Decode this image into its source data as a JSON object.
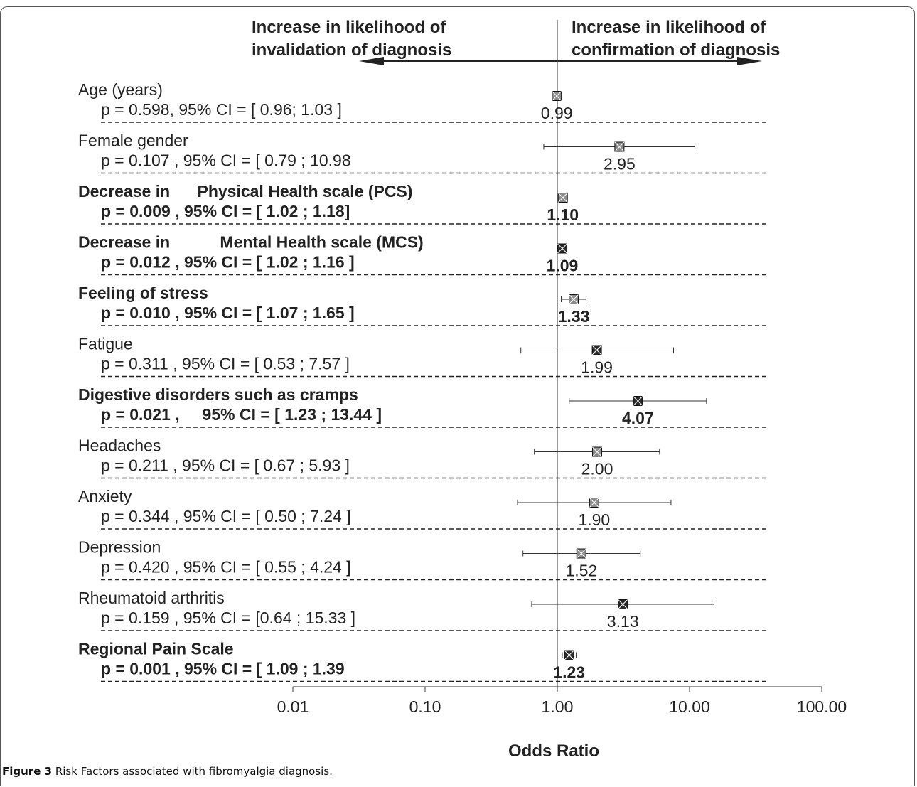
{
  "figure": {
    "caption_label": "Figure 3",
    "caption_text": "Risk Factors associated with fibromyalgia diagnosis"
  },
  "chart_data": {
    "type": "forest",
    "xlabel": "Odds Ratio",
    "x_scale": "log",
    "xlim": [
      0.01,
      100
    ],
    "x_ticks": [
      0.01,
      0.1,
      1,
      10,
      100
    ],
    "x_tick_labels": [
      "0.01",
      "0.10",
      "1.00",
      "10.00",
      "100.00"
    ],
    "reference_line": 1,
    "direction_left": {
      "line1": "Increase in likelihood of",
      "line2": "invalidation of diagnosis"
    },
    "direction_right": {
      "line1": "Increase  in likelihood of",
      "line2": "confirmation of diagnosis"
    },
    "rows": [
      {
        "name": "Age (years)",
        "stats": "p = 0.598, 95% CI = [ 0.96; 1.03 ]",
        "or": 0.99,
        "or_label": "0.99",
        "lo": 0.96,
        "hi": 1.03,
        "bold": false,
        "marker": "gray"
      },
      {
        "name": "Female gender",
        "stats": "p = 0.107 , 95% CI = [ 0.79 ; 10.98",
        "or": 2.95,
        "or_label": "2.95",
        "lo": 0.79,
        "hi": 10.98,
        "bold": false,
        "marker": "gray"
      },
      {
        "name": "Decrease in      Physical Health scale (PCS)",
        "stats": "p = 0.009 , 95% CI = [ 1.02 ; 1.18]",
        "or": 1.1,
        "or_label": "1.10",
        "lo": 1.02,
        "hi": 1.18,
        "bold": true,
        "marker": "gray"
      },
      {
        "name": "Decrease in           Mental Health scale (MCS)",
        "stats": "p = 0.012 , 95% CI = [ 1.02 ; 1.16 ]",
        "or": 1.09,
        "or_label": "1.09",
        "lo": 1.02,
        "hi": 1.16,
        "bold": true,
        "marker": "dark"
      },
      {
        "name": "Feeling of stress",
        "stats": "p = 0.010 , 95% CI = [ 1.07 ; 1.65 ]",
        "or": 1.33,
        "or_label": "1.33",
        "lo": 1.07,
        "hi": 1.65,
        "bold": true,
        "marker": "gray"
      },
      {
        "name": "Fatigue",
        "stats": "p = 0.311 , 95% CI = [ 0.53 ; 7.57 ]",
        "or": 1.99,
        "or_label": "1.99",
        "lo": 0.53,
        "hi": 7.57,
        "bold": false,
        "marker": "dark"
      },
      {
        "name": "Digestive disorders such as cramps",
        "stats": "p = 0.021 ,     95% CI = [ 1.23 ; 13.44 ]",
        "or": 4.07,
        "or_label": "4.07",
        "lo": 1.23,
        "hi": 13.44,
        "bold": true,
        "marker": "dark"
      },
      {
        "name": "Headaches",
        "stats": "p = 0.211 , 95% CI = [ 0.67 ; 5.93 ]",
        "or": 2.0,
        "or_label": "2.00",
        "lo": 0.67,
        "hi": 5.93,
        "bold": false,
        "marker": "gray"
      },
      {
        "name": "Anxiety",
        "stats": "p = 0.344 , 95% CI = [ 0.50 ; 7.24 ]",
        "or": 1.9,
        "or_label": "1.90",
        "lo": 0.5,
        "hi": 7.24,
        "bold": false,
        "marker": "gray"
      },
      {
        "name": "Depression",
        "stats": "p = 0.420 , 95% CI = [ 0.55 ; 4.24 ]",
        "or": 1.52,
        "or_label": "1.52",
        "lo": 0.55,
        "hi": 4.24,
        "bold": false,
        "marker": "gray"
      },
      {
        "name": "Rheumatoid arthritis",
        "stats": "p = 0.159 , 95% CI = [0.64 ; 15.33 ]",
        "or": 3.13,
        "or_label": "3.13",
        "lo": 0.64,
        "hi": 15.33,
        "bold": false,
        "marker": "dark"
      },
      {
        "name": "Regional Pain Scale",
        "stats": "p = 0.001 , 95% CI = [ 1.09 ; 1.39",
        "or": 1.23,
        "or_label": "1.23",
        "lo": 1.09,
        "hi": 1.39,
        "bold": true,
        "marker": "dark"
      }
    ],
    "colors": {
      "marker_gray": "#8c8c8c",
      "marker_dark": "#2a2a2a",
      "line": "#333333"
    }
  }
}
